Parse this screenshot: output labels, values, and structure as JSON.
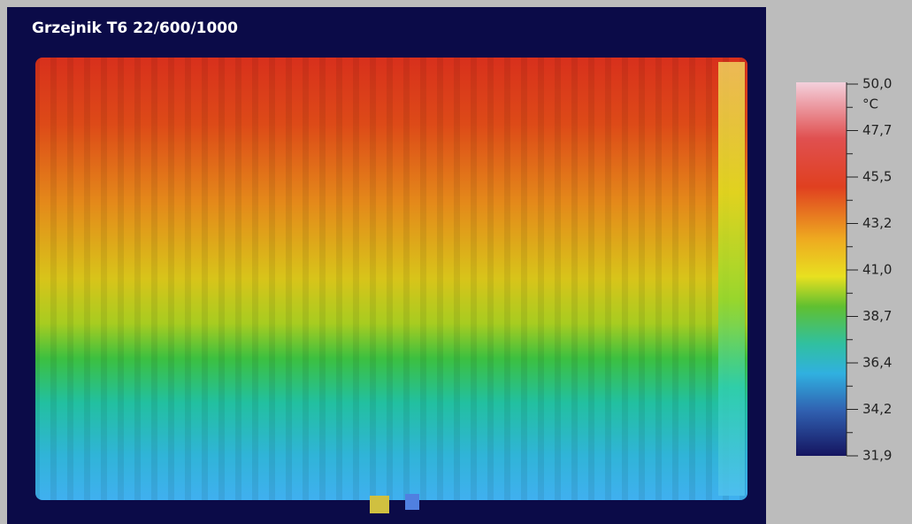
{
  "header": {
    "title": "Grzejnik T6 22/600/1000"
  },
  "scale": {
    "unit": "°C",
    "labels": [
      "50,0",
      "47,7",
      "45,5",
      "43,2",
      "41,0",
      "38,7",
      "36,4",
      "34,2",
      "31,9"
    ]
  }
}
